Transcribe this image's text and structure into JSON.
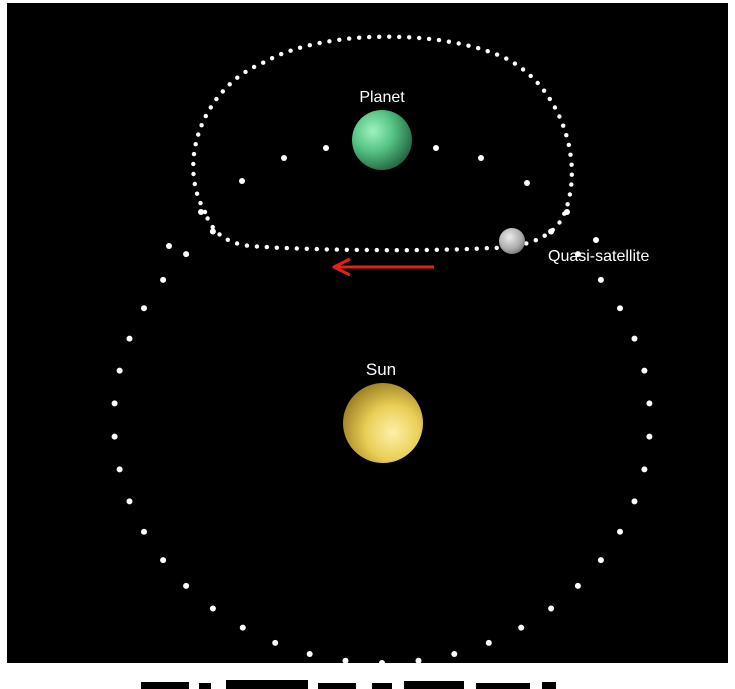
{
  "diagram": {
    "labels": {
      "planet": "Planet",
      "sun": "Sun",
      "quasi_satellite": "Quasi-satellite"
    },
    "colors": {
      "background": "#000000",
      "frame": "#ffffff",
      "dots": "#ffffff",
      "label_text": "#ffffff",
      "arrow": "#e0241b",
      "planet_fill": "#5fd08f",
      "sun_fill": "#f0d35c",
      "quasi_satellite_fill": "#b8b8b8"
    }
  }
}
